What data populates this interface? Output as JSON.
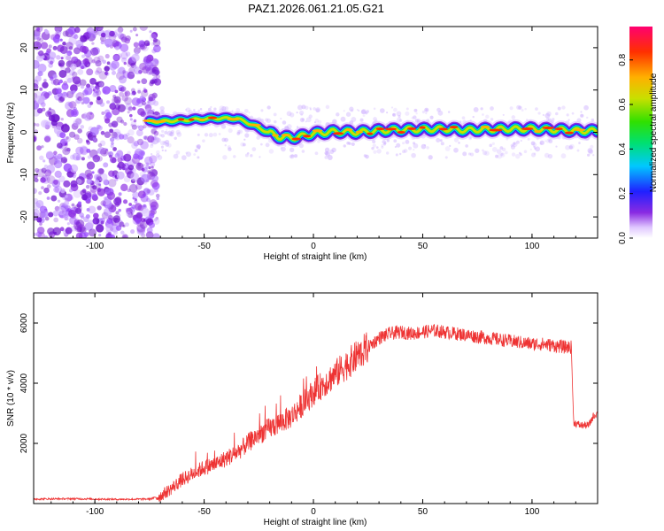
{
  "title": "PAZ1.2026.061.21.05.G21",
  "colors": {
    "snr_line": "#ee3333",
    "frame": "#000000",
    "noise_scatter": "#8a2be2"
  },
  "chart_data": [
    {
      "type": "heatmap",
      "name": "spectrogram",
      "xlabel": "Height of straight line (km)",
      "ylabel": "Frequency (Hz)",
      "xlim": [
        -128,
        130
      ],
      "ylim": [
        -25,
        25
      ],
      "xticks": [
        -100,
        -50,
        0,
        50,
        100
      ],
      "yticks": [
        -20,
        -10,
        0,
        10,
        20
      ],
      "noise_region_x": [
        -128,
        -75
      ],
      "ridge_x": [
        -75,
        -65,
        -55,
        -45,
        -35,
        -28,
        -22,
        -15,
        -8,
        0,
        10,
        20,
        30,
        40,
        50,
        60,
        70,
        80,
        90,
        100,
        110,
        120,
        130
      ],
      "ridge_freq": [
        2.5,
        2.7,
        3.0,
        3.3,
        3.3,
        1.8,
        0.3,
        -1.2,
        -1.2,
        -0.3,
        0.2,
        0.0,
        0.4,
        0.6,
        0.7,
        0.8,
        0.5,
        0.7,
        0.8,
        0.8,
        0.6,
        0.4,
        0.3
      ],
      "colorbar": {
        "label": "Normalized spectral amplitude",
        "range": [
          0.0,
          0.95
        ],
        "ticks": [
          0.0,
          0.2,
          0.4,
          0.6,
          0.8
        ]
      }
    },
    {
      "type": "line",
      "name": "snr",
      "xlabel": "Height of straight line (km)",
      "ylabel": "SNR (10 * v/v)",
      "xlim": [
        -128,
        130
      ],
      "ylim": [
        0,
        7000
      ],
      "xticks": [
        -100,
        -50,
        0,
        50,
        100
      ],
      "yticks": [
        2000,
        4000,
        6000
      ],
      "series": [
        {
          "name": "SNR",
          "x": [
            -128,
            -110,
            -90,
            -75,
            -70,
            -65,
            -60,
            -55,
            -50,
            -45,
            -40,
            -35,
            -30,
            -25,
            -20,
            -15,
            -10,
            -5,
            0,
            5,
            10,
            15,
            20,
            25,
            30,
            35,
            40,
            45,
            50,
            55,
            60,
            65,
            70,
            75,
            80,
            85,
            90,
            95,
            100,
            105,
            110,
            115,
            118,
            119,
            122,
            126,
            128,
            130
          ],
          "values": [
            150,
            160,
            140,
            150,
            250,
            500,
            800,
            1000,
            1200,
            1300,
            1500,
            1700,
            2000,
            2300,
            2500,
            2700,
            2900,
            3300,
            3700,
            4000,
            4300,
            4600,
            4900,
            5200,
            5500,
            5650,
            5700,
            5650,
            5700,
            5750,
            5700,
            5650,
            5600,
            5550,
            5500,
            5450,
            5400,
            5350,
            5300,
            5300,
            5250,
            5200,
            5200,
            2700,
            2600,
            2600,
            2900,
            3000
          ]
        }
      ]
    }
  ]
}
